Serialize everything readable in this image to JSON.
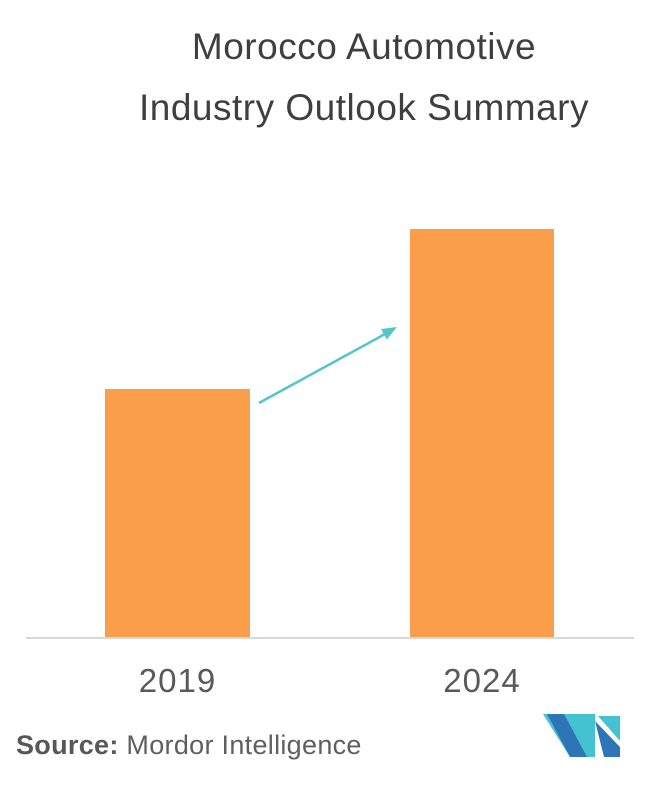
{
  "title": {
    "line1": "Morocco Automotive",
    "line2": "Industry Outlook Summary"
  },
  "chart_data": {
    "type": "bar",
    "title": "Morocco Automotive Industry Outlook Summary",
    "categories": [
      "2019",
      "2024"
    ],
    "values": [
      61,
      100
    ],
    "xlabel": "",
    "ylabel": "",
    "ylim": [
      0,
      110
    ],
    "grid": false,
    "legend": "none",
    "y_axis_visible": false,
    "bar_color": "#fb9e4c",
    "annotations": [
      {
        "type": "arrow",
        "from": "top of 2019 bar",
        "to": "top of 2024 bar",
        "direction": "up-right",
        "color": "#54c5c8",
        "meaning": "growth trend between 2019 and 2024"
      }
    ]
  },
  "x_axis": {
    "labels": [
      "2019",
      "2024"
    ]
  },
  "source": {
    "bold_label": "Source:",
    "text": " Mordor Intelligence"
  },
  "logo": {
    "name": "mordor-intelligence-logo",
    "teal": "#44c2d2",
    "blue": "#2e75b5"
  },
  "colors": {
    "background": "#ffffff",
    "title_text": "#3f3f3f",
    "axis_label_text": "#595959",
    "axis_line": "#d8d8d8",
    "bar": "#fb9e4c",
    "arrow": "#54c5c8",
    "source_text": "#5f5f5f"
  }
}
